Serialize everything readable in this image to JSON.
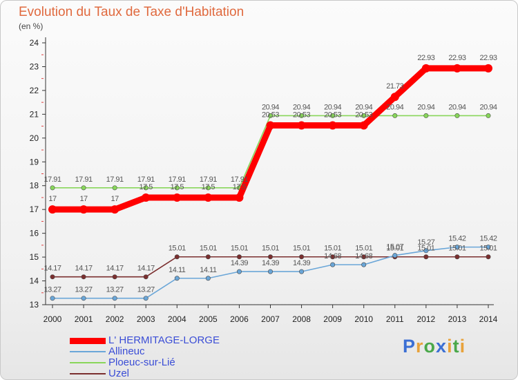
{
  "header": {
    "title": "Evolution du Taux de Taxe d'Habitation",
    "unit": "(en %)"
  },
  "logo": {
    "letters": [
      "P",
      "r",
      "o",
      "x",
      "i",
      "t",
      "i"
    ],
    "colors": [
      "#3b6fd4",
      "#e8a23b",
      "#4aa84a",
      "#3b6fd4",
      "#e8a23b",
      "#4aa84a",
      "#e8a23b"
    ]
  },
  "chart_data": {
    "type": "line",
    "title": "Evolution du Taux de Taxe d'Habitation",
    "ylabel": "(en %)",
    "xlabel": "",
    "ylim": [
      13,
      24
    ],
    "yticks": [
      "13",
      "14",
      "15",
      "16",
      "17",
      "18",
      "19",
      "20",
      "21",
      "22",
      "23",
      "24"
    ],
    "x": [
      "2000",
      "2001",
      "2002",
      "2003",
      "2004",
      "2005",
      "2006",
      "2007",
      "2008",
      "2009",
      "2010",
      "2011",
      "2012",
      "2013",
      "2014"
    ],
    "grid": false,
    "legend_position": "bottom-left",
    "series": [
      {
        "name": "L' HERMITAGE-LORGE",
        "color": "#ff0000",
        "values": [
          17,
          17,
          17,
          17.5,
          17.5,
          17.5,
          17.5,
          20.53,
          20.53,
          20.53,
          20.53,
          21.73,
          22.93,
          22.93,
          22.93
        ],
        "labels": [
          "17",
          "17",
          "17",
          "17.5",
          "17.5",
          "17.5",
          "17.5",
          "20.53",
          "20.53",
          "20.53",
          "20.53",
          "21.73",
          "22.93",
          "22.93",
          "22.93"
        ]
      },
      {
        "name": "Allineuc",
        "color": "#6aa6d8",
        "values": [
          13.27,
          13.27,
          13.27,
          13.27,
          14.11,
          14.11,
          14.39,
          14.39,
          14.39,
          14.68,
          14.68,
          15.07,
          15.27,
          15.42,
          15.42
        ],
        "labels": [
          "13.27",
          "13.27",
          "13.27",
          "13.27",
          "14.11",
          "14.11",
          "14.39",
          "14.39",
          "14.39",
          "14.68",
          "14.68",
          "15.07",
          "15.27",
          "15.42",
          "15.42"
        ]
      },
      {
        "name": "Ploeuc-sur-Lié",
        "color": "#88d65a",
        "values": [
          17.91,
          17.91,
          17.91,
          17.91,
          17.91,
          17.91,
          17.91,
          20.94,
          20.94,
          20.94,
          20.94,
          20.94,
          20.94,
          20.94,
          20.94
        ],
        "labels": [
          "17.91",
          "17.91",
          "17.91",
          "17.91",
          "17.91",
          "17.91",
          "17.91",
          "20.94",
          "20.94",
          "20.94",
          "20.94",
          "20.94",
          "20.94",
          "20.94",
          "20.94"
        ]
      },
      {
        "name": "Uzel",
        "color": "#7a2e2e",
        "values": [
          14.17,
          14.17,
          14.17,
          14.17,
          15.01,
          15.01,
          15.01,
          15.01,
          15.01,
          15.01,
          15.01,
          15.01,
          15.01,
          15.01,
          15.01
        ],
        "labels": [
          "14.17",
          "14.17",
          "14.17",
          "14.17",
          "15.01",
          "15.01",
          "15.01",
          "15.01",
          "15.01",
          "15.01",
          "15.01",
          "15.01",
          "15.01",
          "15.01",
          "15.01"
        ]
      }
    ]
  }
}
